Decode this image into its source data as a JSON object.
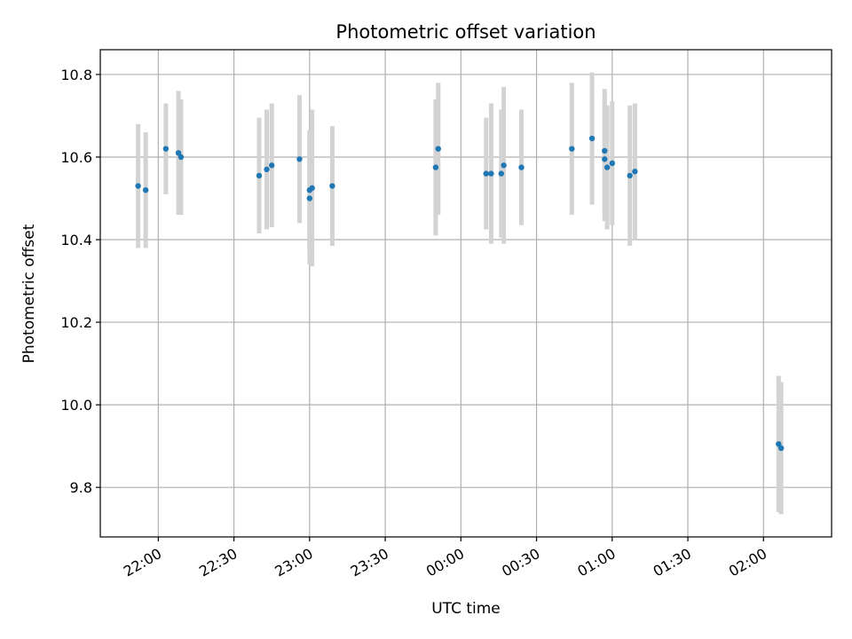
{
  "chart_data": {
    "type": "scatter",
    "title": "Photometric offset variation",
    "xlabel": "UTC time",
    "ylabel": "Photometric offset",
    "xlim": [
      "21:37",
      "02:27"
    ],
    "ylim": [
      9.68,
      10.86
    ],
    "x_ticks": [
      "22:00",
      "22:30",
      "23:00",
      "23:30",
      "00:00",
      "00:30",
      "01:00",
      "01:30",
      "02:00"
    ],
    "y_ticks": [
      9.8,
      10.0,
      10.2,
      10.4,
      10.6,
      10.8
    ],
    "grid": true,
    "marker_color": "#1f77b4",
    "errorbar_color": "#d3d3d3",
    "points": [
      {
        "x": "21:52",
        "y": 10.53,
        "err": 0.15
      },
      {
        "x": "21:55",
        "y": 10.52,
        "err": 0.14
      },
      {
        "x": "22:03",
        "y": 10.62,
        "err": 0.11
      },
      {
        "x": "22:08",
        "y": 10.61,
        "err": 0.15
      },
      {
        "x": "22:09",
        "y": 10.6,
        "err": 0.14
      },
      {
        "x": "22:40",
        "y": 10.555,
        "err": 0.14
      },
      {
        "x": "22:43",
        "y": 10.57,
        "err": 0.145
      },
      {
        "x": "22:45",
        "y": 10.58,
        "err": 0.15
      },
      {
        "x": "22:56",
        "y": 10.595,
        "err": 0.155
      },
      {
        "x": "23:00",
        "y": 10.52,
        "err": 0.145
      },
      {
        "x": "23:00",
        "y": 10.5,
        "err": 0.16
      },
      {
        "x": "23:01",
        "y": 10.525,
        "err": 0.19
      },
      {
        "x": "23:09",
        "y": 10.53,
        "err": 0.145
      },
      {
        "x": "23:50",
        "y": 10.575,
        "err": 0.165
      },
      {
        "x": "23:51",
        "y": 10.62,
        "err": 0.16
      },
      {
        "x": "00:10",
        "y": 10.56,
        "err": 0.135
      },
      {
        "x": "00:12",
        "y": 10.56,
        "err": 0.17
      },
      {
        "x": "00:16",
        "y": 10.56,
        "err": 0.155
      },
      {
        "x": "00:17",
        "y": 10.58,
        "err": 0.19
      },
      {
        "x": "00:24",
        "y": 10.575,
        "err": 0.14
      },
      {
        "x": "00:44",
        "y": 10.62,
        "err": 0.16
      },
      {
        "x": "00:52",
        "y": 10.645,
        "err": 0.16
      },
      {
        "x": "00:57",
        "y": 10.615,
        "err": 0.15
      },
      {
        "x": "00:57",
        "y": 10.595,
        "err": 0.15
      },
      {
        "x": "00:58",
        "y": 10.575,
        "err": 0.15
      },
      {
        "x": "01:00",
        "y": 10.585,
        "err": 0.15
      },
      {
        "x": "01:07",
        "y": 10.555,
        "err": 0.17
      },
      {
        "x": "01:09",
        "y": 10.565,
        "err": 0.165
      },
      {
        "x": "02:06",
        "y": 9.905,
        "err": 0.165
      },
      {
        "x": "02:07",
        "y": 9.895,
        "err": 0.16
      }
    ]
  }
}
